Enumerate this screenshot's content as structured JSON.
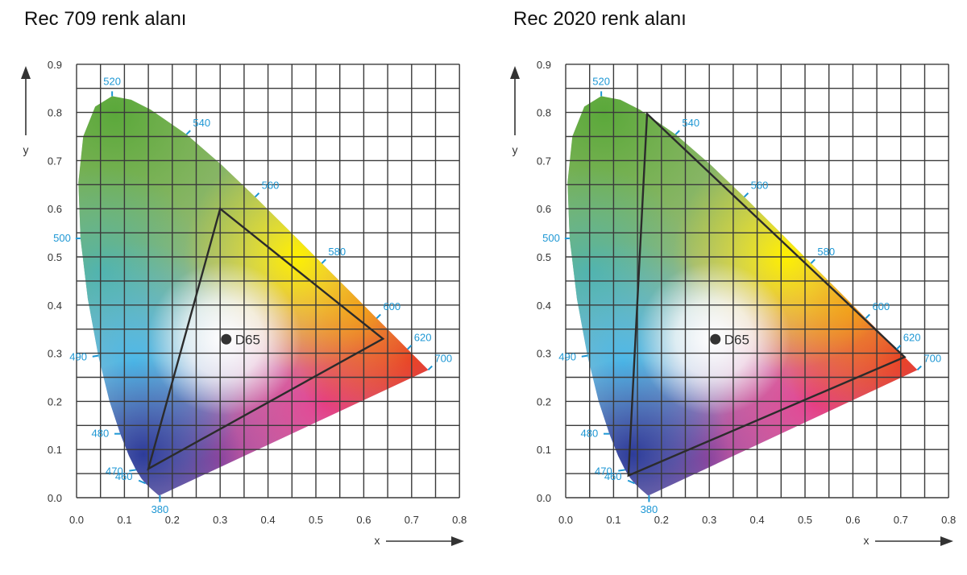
{
  "chart_data": [
    {
      "type": "scatter",
      "title": "Rec 709 renk alanı",
      "xlabel": "x",
      "ylabel": "y",
      "xlim": [
        0,
        0.8
      ],
      "ylim": [
        0,
        0.9
      ],
      "x_ticks": [
        "0.0",
        "0.1",
        "0.2",
        "0.3",
        "0.4",
        "0.5",
        "0.6",
        "0.7",
        "0.8"
      ],
      "y_ticks": [
        "0.0",
        "0.1",
        "0.2",
        "0.3",
        "0.4",
        "0.5",
        "0.6",
        "0.7",
        "0.8",
        "0.9"
      ],
      "grid": true,
      "series": [
        {
          "name": "gamut",
          "points": [
            [
              0.64,
              0.33
            ],
            [
              0.3,
              0.6
            ],
            [
              0.15,
              0.06
            ]
          ]
        }
      ],
      "white_point": {
        "label": "D65",
        "x": 0.3127,
        "y": 0.329
      },
      "wavelength_labels": [
        "380",
        "460",
        "470",
        "480",
        "490",
        "500",
        "520",
        "540",
        "560",
        "580",
        "600",
        "620",
        "700"
      ]
    },
    {
      "type": "scatter",
      "title": "Rec 2020 renk alanı",
      "xlabel": "x",
      "ylabel": "y",
      "xlim": [
        0,
        0.8
      ],
      "ylim": [
        0,
        0.9
      ],
      "x_ticks": [
        "0.0",
        "0.1",
        "0.2",
        "0.3",
        "0.4",
        "0.5",
        "0.6",
        "0.7",
        "0.8"
      ],
      "y_ticks": [
        "0.0",
        "0.1",
        "0.2",
        "0.3",
        "0.4",
        "0.5",
        "0.6",
        "0.7",
        "0.8",
        "0.9"
      ],
      "grid": true,
      "series": [
        {
          "name": "gamut",
          "points": [
            [
              0.708,
              0.292
            ],
            [
              0.17,
              0.797
            ],
            [
              0.131,
              0.046
            ]
          ]
        }
      ],
      "white_point": {
        "label": "D65",
        "x": 0.3127,
        "y": 0.329
      },
      "wavelength_labels": [
        "380",
        "460",
        "470",
        "480",
        "490",
        "500",
        "520",
        "540",
        "560",
        "580",
        "600",
        "620",
        "700"
      ]
    }
  ],
  "colors": {
    "gamut_stroke": "#2b2b2b",
    "grid": "#3a3a3a",
    "wavelength_label": "#1d97d4",
    "white_point": "#333333"
  }
}
